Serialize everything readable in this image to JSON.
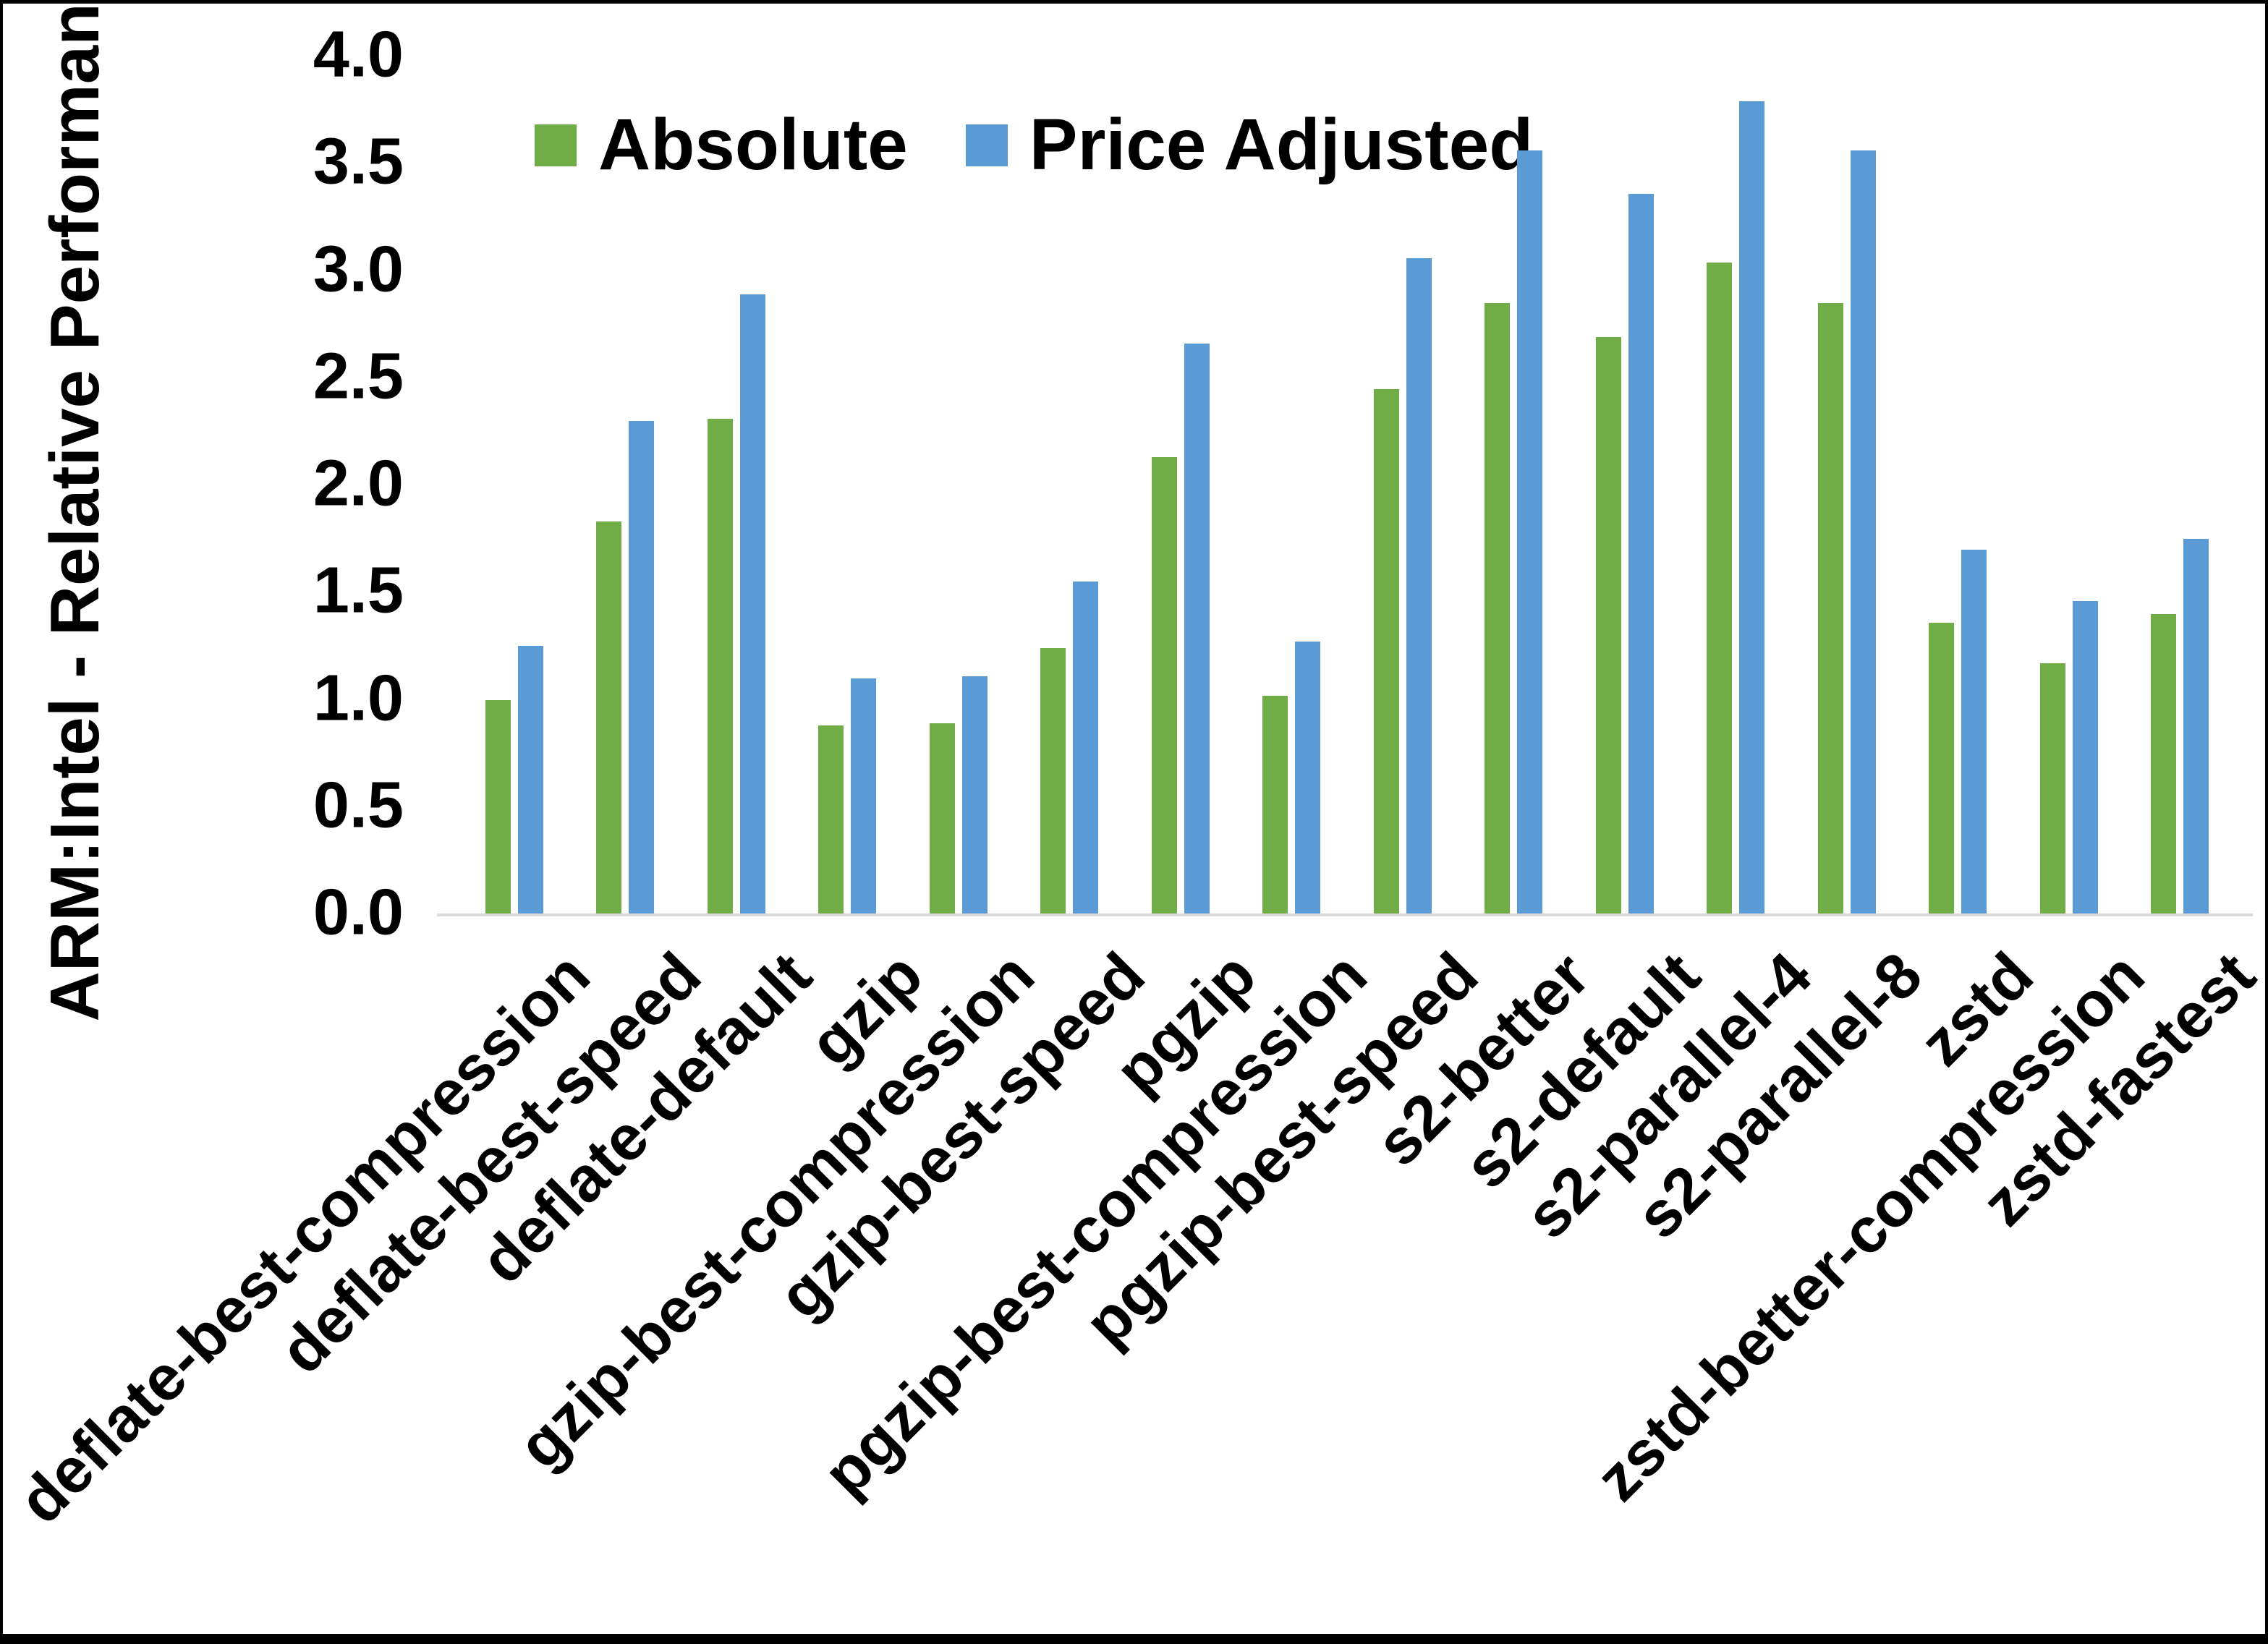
{
  "figure": {
    "background": "#ffffff",
    "frame_color": "#000000",
    "axis_line_color": "#d9d9d9"
  },
  "y_axis": {
    "title": "ARM:Intel - Relative Performance",
    "ticks": [
      "0.0",
      "0.5",
      "1.0",
      "1.5",
      "2.0",
      "2.5",
      "3.0",
      "3.5",
      "4.0"
    ],
    "min": 0,
    "max": 4
  },
  "legend": {
    "items": [
      {
        "label": "Absolute",
        "color": "#70AD47"
      },
      {
        "label": "Price Adjusted",
        "color": "#5B9BD5"
      }
    ]
  },
  "chart_data": {
    "type": "bar",
    "title": "",
    "xlabel": "",
    "ylabel": "ARM:Intel - Relative Performance",
    "ylim": [
      0,
      4
    ],
    "ytick_step": 0.5,
    "grid": false,
    "legend_position": "top-center",
    "categories": [
      "deflate-best-compression",
      "deflate-best-speed",
      "deflate-default",
      "gzip",
      "gzip-best-compression",
      "gzip-best-speed",
      "pgzip",
      "pgzip-best-compression",
      "pgzip-best-speed",
      "s2-better",
      "s2-default",
      "s2-parallel-4",
      "s2-parallel-8",
      "zstd",
      "zstd-better-compression",
      "zstd-fastest"
    ],
    "series": [
      {
        "name": "Absolute",
        "color": "#70AD47",
        "values": [
          1.0,
          1.83,
          2.31,
          0.88,
          0.89,
          1.24,
          2.13,
          1.02,
          2.45,
          2.85,
          2.69,
          3.04,
          2.85,
          1.36,
          1.17,
          1.4
        ]
      },
      {
        "name": "Price Adjusted",
        "color": "#5B9BD5",
        "values": [
          1.25,
          2.3,
          2.89,
          1.1,
          1.11,
          1.55,
          2.66,
          1.27,
          3.06,
          3.56,
          3.36,
          3.79,
          3.56,
          1.7,
          1.46,
          1.75
        ]
      }
    ]
  }
}
